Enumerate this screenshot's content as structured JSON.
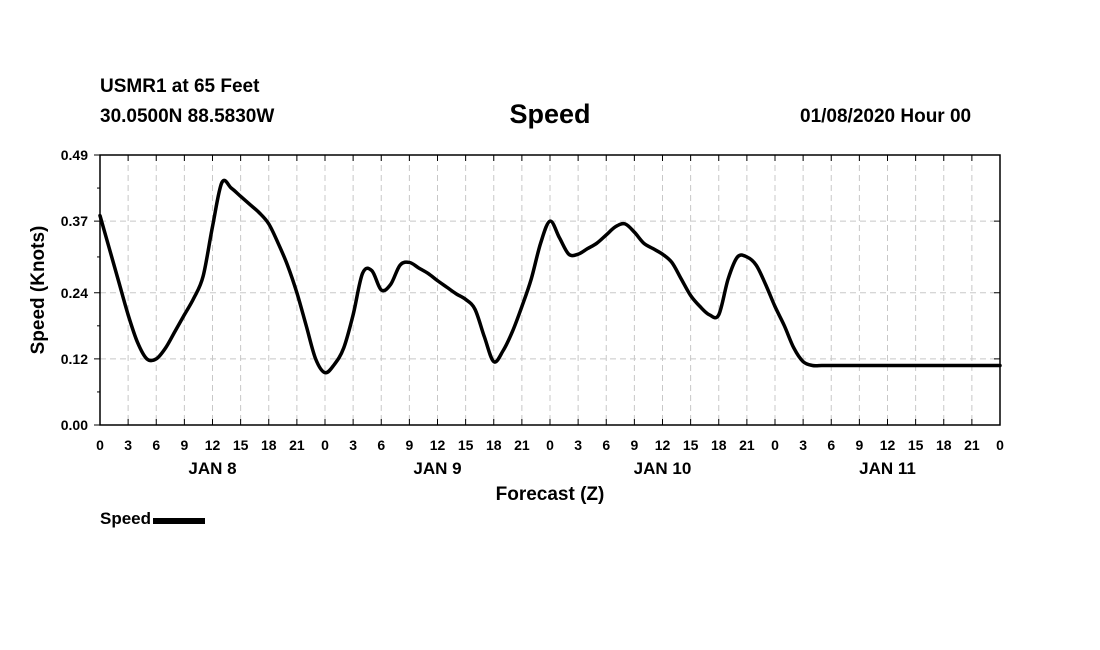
{
  "header": {
    "station": "USMR1 at 65 Feet",
    "coordinates": "30.0500N 88.5830W",
    "issued": "01/08/2020 Hour 00"
  },
  "chart_data": {
    "type": "line",
    "title": "Speed",
    "xlabel": "Forecast (Z)",
    "ylabel": "Speed (Knots)",
    "x_unit": "forecast hour from 01/08/2020 00Z",
    "xlim": [
      0,
      96
    ],
    "ylim": [
      0.0,
      0.49
    ],
    "yticks": [
      "0.00",
      "0.12",
      "0.24",
      "0.37",
      "0.49"
    ],
    "xtick_labels": [
      "0",
      "3",
      "6",
      "9",
      "12",
      "15",
      "18",
      "21",
      "0",
      "3",
      "6",
      "9",
      "12",
      "15",
      "18",
      "21",
      "0",
      "3",
      "6",
      "9",
      "12",
      "15",
      "18",
      "21",
      "0",
      "3",
      "6",
      "9",
      "12",
      "15",
      "18",
      "21",
      "0"
    ],
    "day_labels": [
      "JAN 8",
      "JAN 9",
      "JAN 10",
      "JAN 11"
    ],
    "grid": true,
    "legend_position": "bottom-left",
    "line_color": "#000000",
    "series": [
      {
        "name": "Speed",
        "x": [
          0,
          1,
          2,
          3,
          4,
          5,
          6,
          7,
          8,
          9,
          10,
          11,
          12,
          13,
          14,
          15,
          16,
          17,
          18,
          19,
          20,
          21,
          22,
          23,
          24,
          25,
          26,
          27,
          28,
          29,
          30,
          31,
          32,
          33,
          34,
          35,
          36,
          37,
          38,
          39,
          40,
          41,
          42,
          43,
          44,
          45,
          46,
          47,
          48,
          49,
          50,
          51,
          52,
          53,
          54,
          55,
          56,
          57,
          58,
          59,
          60,
          61,
          62,
          63,
          64,
          65,
          66,
          67,
          68,
          69,
          70,
          71,
          72,
          73,
          74,
          75,
          76,
          77,
          78,
          79,
          80,
          81,
          82,
          83,
          84,
          85,
          86,
          87,
          88,
          89,
          90,
          91,
          92,
          93,
          94,
          95,
          96
        ],
        "values": [
          0.38,
          0.32,
          0.26,
          0.2,
          0.15,
          0.12,
          0.12,
          0.14,
          0.17,
          0.2,
          0.23,
          0.27,
          0.36,
          0.44,
          0.43,
          0.415,
          0.4,
          0.385,
          0.365,
          0.33,
          0.29,
          0.24,
          0.18,
          0.12,
          0.095,
          0.11,
          0.14,
          0.2,
          0.275,
          0.28,
          0.245,
          0.255,
          0.29,
          0.295,
          0.285,
          0.275,
          0.262,
          0.25,
          0.238,
          0.228,
          0.21,
          0.16,
          0.115,
          0.135,
          0.17,
          0.215,
          0.265,
          0.33,
          0.37,
          0.34,
          0.31,
          0.31,
          0.32,
          0.33,
          0.345,
          0.36,
          0.365,
          0.35,
          0.33,
          0.32,
          0.31,
          0.295,
          0.265,
          0.235,
          0.215,
          0.2,
          0.2,
          0.265,
          0.305,
          0.305,
          0.29,
          0.255,
          0.215,
          0.18,
          0.14,
          0.115,
          0.108,
          0.108,
          0.108,
          0.108,
          0.108,
          0.108,
          0.108,
          0.108,
          0.108,
          0.108,
          0.108,
          0.108,
          0.108,
          0.108,
          0.108,
          0.108,
          0.108,
          0.108,
          0.108,
          0.108,
          0.108
        ]
      }
    ]
  }
}
